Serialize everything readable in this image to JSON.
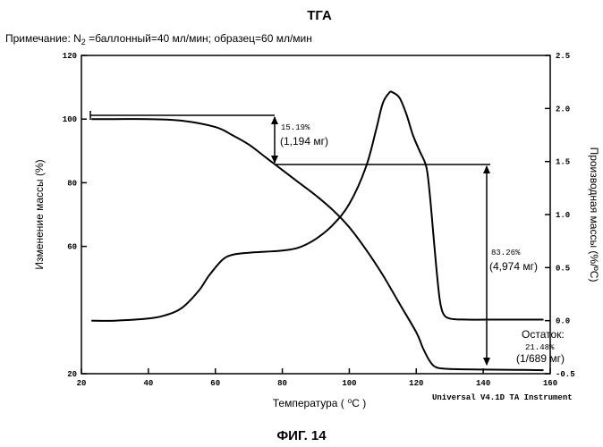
{
  "header": {
    "title": "ТГА",
    "note_prefix": "Примечание: N",
    "note_sub": "2",
    "note_suffix": " =баллонный=40 мл/мин; образец=60 мл/мин"
  },
  "figure_label": "ФИГ. 14",
  "instrument": "Universal V4.1D TA Instrument",
  "chart_data": {
    "type": "line",
    "xlabel": "Температура ( ºC )",
    "xlabel_parts": {
      "text": "Температура (",
      "unit_sup": "o",
      "unit": "C )"
    },
    "ylabel_left": "Изменение массы (%)",
    "ylabel_right": "Производная массы (%/ºC)",
    "xlim": [
      20,
      160
    ],
    "ylim_left": [
      20,
      120
    ],
    "ylim_right": [
      -0.5,
      2.5
    ],
    "x_ticks": [
      "20",
      "40",
      "60",
      "80",
      "100",
      "120",
      "140",
      "160"
    ],
    "y_left_ticks": [
      "20",
      "60",
      "80",
      "100",
      "120"
    ],
    "y_right_ticks": [
      "-0.5",
      "0.0",
      "0.5",
      "1.0",
      "1.5",
      "2.0",
      "2.5"
    ],
    "series": [
      {
        "axis": "left",
        "x": [
          23,
          30,
          40,
          50,
          60,
          65,
          70,
          75,
          77.5,
          80,
          85,
          90,
          95,
          100,
          105,
          110,
          115,
          120,
          122,
          124,
          126,
          130,
          140,
          150,
          158
        ],
        "y": [
          100,
          100,
          100,
          99.5,
          97.5,
          95,
          92,
          88,
          86,
          84,
          80,
          76,
          71.5,
          66,
          59,
          51,
          42,
          33,
          28,
          24,
          22,
          21.5,
          21.3,
          21.2,
          21.1
        ]
      },
      {
        "axis": "right",
        "x": [
          23,
          30,
          40,
          45,
          50,
          55,
          58,
          62,
          65,
          70,
          75,
          80,
          85,
          90,
          95,
          100,
          105,
          108,
          110,
          112,
          113,
          115,
          117,
          119,
          121,
          123,
          124,
          125,
          126,
          127,
          128,
          130,
          135,
          145,
          158
        ],
        "y": [
          0,
          0,
          0.02,
          0.05,
          0.12,
          0.28,
          0.42,
          0.57,
          0.62,
          0.64,
          0.65,
          0.66,
          0.69,
          0.77,
          0.9,
          1.1,
          1.45,
          1.8,
          2.05,
          2.15,
          2.15,
          2.1,
          1.95,
          1.75,
          1.6,
          1.45,
          1.2,
          0.85,
          0.5,
          0.2,
          0.07,
          0.02,
          0.01,
          0.01,
          0.01
        ]
      }
    ],
    "annotations": {
      "step1_line1": "15.19%",
      "step1_line2": "(1,194 мг)",
      "step2_line1": "83.26%",
      "step2_line2": "(4,974 мг)",
      "residue_line1": "Остаток:",
      "residue_line2": "21.48%",
      "residue_line3": "(1/689 мг)"
    }
  }
}
